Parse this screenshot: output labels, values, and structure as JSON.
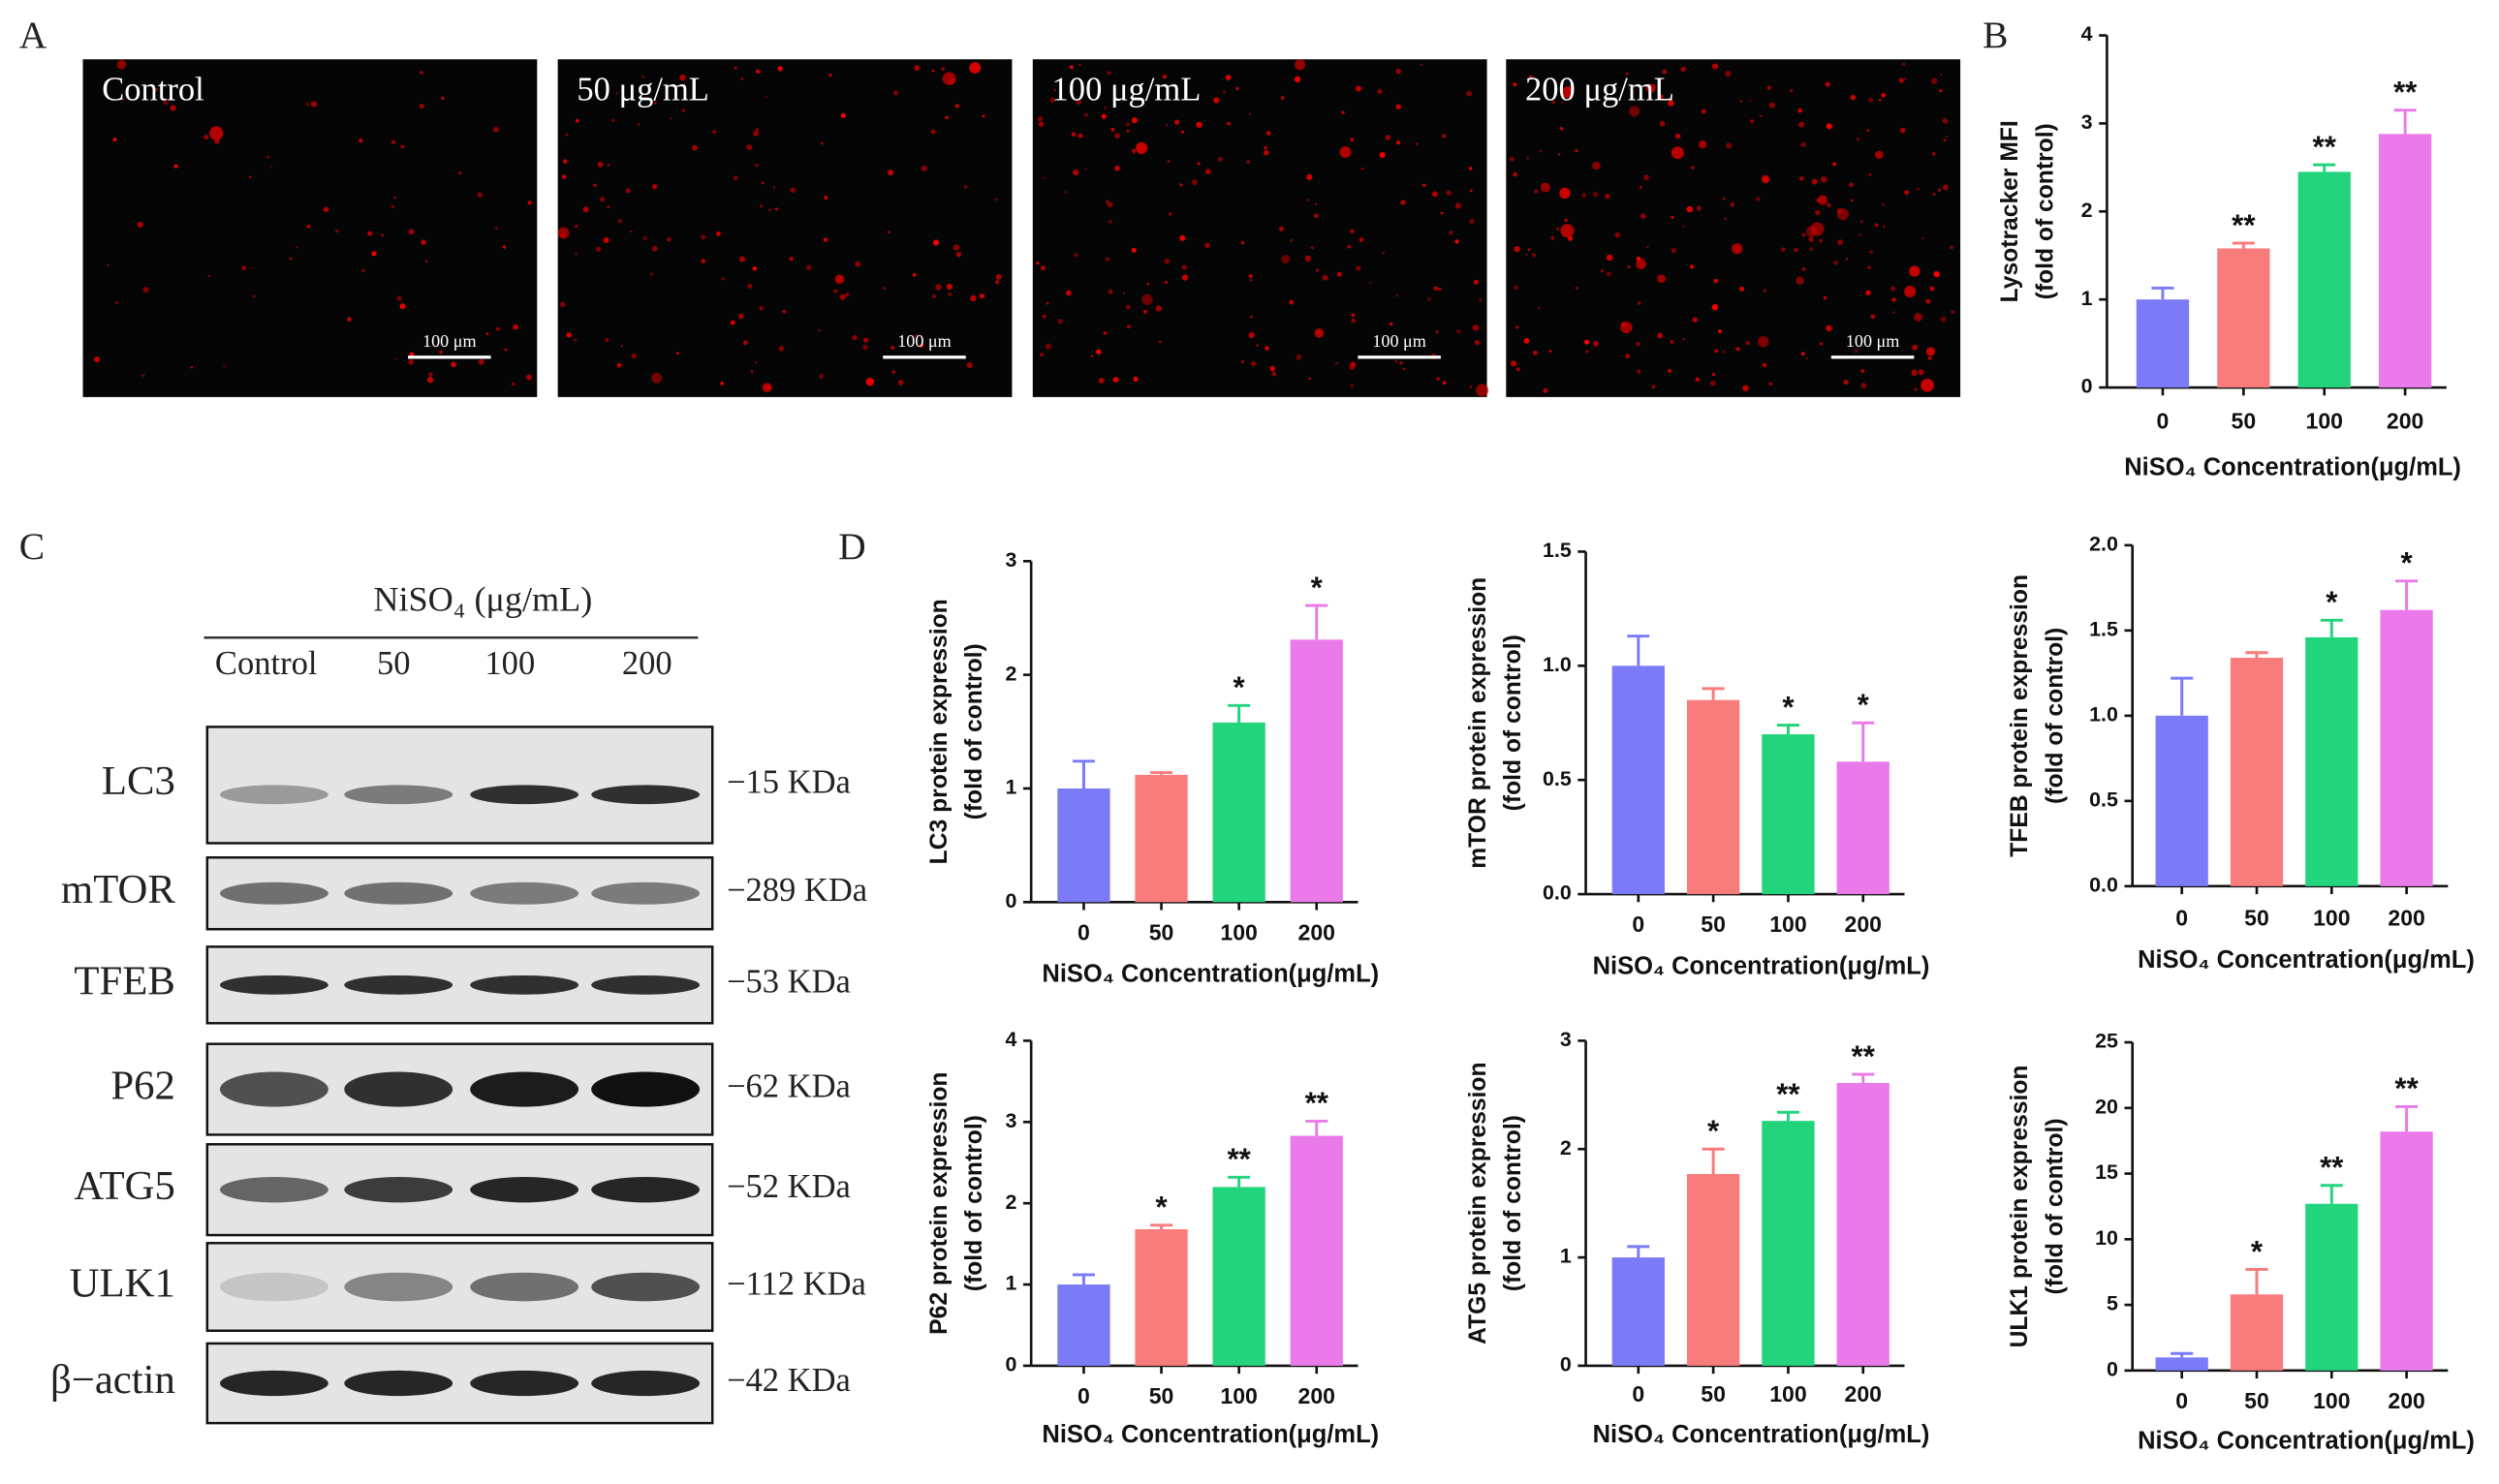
{
  "panel_labels": [
    "A",
    "B",
    "C",
    "D"
  ],
  "microscopy": {
    "labels": [
      "Control",
      "50 μg/mL",
      "100 μg/mL",
      "200 μg/mL"
    ],
    "scale_bar": "100 μm"
  },
  "western_blot": {
    "treatment": "NiSO₄ (μg/mL)",
    "lanes": [
      "Control",
      "50",
      "100",
      "200"
    ],
    "proteins": [
      {
        "name": "LC3",
        "size": "−15 KDa"
      },
      {
        "name": "mTOR",
        "size": "−289 KDa"
      },
      {
        "name": "TFEB",
        "size": "−53 KDa"
      },
      {
        "name": "P62",
        "size": "−62 KDa"
      },
      {
        "name": "ATG5",
        "size": "−52 KDa"
      },
      {
        "name": "ULK1",
        "size": "−112 KDa"
      },
      {
        "name": "β−actin",
        "size": "−42 KDa"
      }
    ]
  },
  "chart_data": [
    {
      "type": "bar",
      "ylabel": [
        "Lysotracker MFI",
        "(fold of control)"
      ],
      "xlabel": "NiSO₄ Concentration(μg/mL)",
      "categories": [
        "0",
        "50",
        "100",
        "200"
      ],
      "colors": [
        "#7b7bf7",
        "#f87c7c",
        "#22d47c",
        "#ea7aea"
      ],
      "values": [
        1.0,
        1.58,
        2.45,
        2.88
      ],
      "errors": [
        0.13,
        0.06,
        0.08,
        0.27
      ],
      "significance": [
        null,
        "**",
        "**",
        "**"
      ],
      "ylim": [
        0,
        4
      ],
      "yticks": [
        0,
        1,
        2,
        3,
        4
      ]
    },
    {
      "type": "bar",
      "ylabel": [
        "LC3 protein expression",
        "(fold of control)"
      ],
      "xlabel": "NiSO₄ Concentration(μg/mL)",
      "categories": [
        "0",
        "50",
        "100",
        "200"
      ],
      "colors": [
        "#7b7bf7",
        "#f87c7c",
        "#22d47c",
        "#ea7aea"
      ],
      "values": [
        1.0,
        1.12,
        1.58,
        2.31
      ],
      "errors": [
        0.24,
        0.02,
        0.15,
        0.3
      ],
      "significance": [
        null,
        null,
        "*",
        "*"
      ],
      "ylim": [
        0,
        3
      ],
      "yticks": [
        0,
        1,
        2,
        3
      ]
    },
    {
      "type": "bar",
      "ylabel": [
        "mTOR protein expression",
        "(fold of control)"
      ],
      "xlabel": "NiSO₄ Concentration(μg/mL)",
      "categories": [
        "0",
        "50",
        "100",
        "200"
      ],
      "colors": [
        "#7b7bf7",
        "#f87c7c",
        "#22d47c",
        "#ea7aea"
      ],
      "values": [
        1.0,
        0.85,
        0.7,
        0.58
      ],
      "errors": [
        0.13,
        0.05,
        0.04,
        0.17
      ],
      "significance": [
        null,
        null,
        "*",
        "*"
      ],
      "ylim": [
        0,
        1.5
      ],
      "yticks": [
        {
          "value": 0,
          "label": "0.0"
        },
        {
          "value": 0.5,
          "label": "0.5"
        },
        {
          "value": 1,
          "label": "1.0"
        },
        {
          "value": 1.5,
          "label": "1.5"
        }
      ]
    },
    {
      "type": "bar",
      "ylabel": [
        "TFEB protein expression",
        "(fold of control)"
      ],
      "xlabel": "NiSO₄ Concentration(μg/mL)",
      "categories": [
        "0",
        "50",
        "100",
        "200"
      ],
      "colors": [
        "#7b7bf7",
        "#f87c7c",
        "#22d47c",
        "#ea7aea"
      ],
      "values": [
        1.0,
        1.34,
        1.46,
        1.62
      ],
      "errors": [
        0.22,
        0.03,
        0.1,
        0.17
      ],
      "significance": [
        null,
        null,
        "*",
        "*"
      ],
      "ylim": [
        0,
        2
      ],
      "yticks": [
        {
          "value": 0,
          "label": "0.0"
        },
        {
          "value": 0.5,
          "label": "0.5"
        },
        {
          "value": 1,
          "label": "1.0"
        },
        {
          "value": 1.5,
          "label": "1.5"
        },
        {
          "value": 2,
          "label": "2.0"
        }
      ]
    },
    {
      "type": "bar",
      "ylabel": [
        "P62 protein expression",
        "(fold of control)"
      ],
      "xlabel": "NiSO₄ Concentration(μg/mL)",
      "categories": [
        "0",
        "50",
        "100",
        "200"
      ],
      "colors": [
        "#7b7bf7",
        "#f87c7c",
        "#22d47c",
        "#ea7aea"
      ],
      "values": [
        1.0,
        1.68,
        2.2,
        2.83
      ],
      "errors": [
        0.12,
        0.05,
        0.12,
        0.18
      ],
      "significance": [
        null,
        "*",
        "**",
        "**"
      ],
      "ylim": [
        0,
        4
      ],
      "yticks": [
        0,
        1,
        2,
        3,
        4
      ]
    },
    {
      "type": "bar",
      "ylabel": [
        "ATG5 protein expression",
        "(fold of control)"
      ],
      "xlabel": "NiSO₄ Concentration(μg/mL)",
      "categories": [
        "0",
        "50",
        "100",
        "200"
      ],
      "colors": [
        "#7b7bf7",
        "#f87c7c",
        "#22d47c",
        "#ea7aea"
      ],
      "values": [
        1.0,
        1.77,
        2.26,
        2.61
      ],
      "errors": [
        0.1,
        0.23,
        0.08,
        0.08
      ],
      "significance": [
        null,
        "*",
        "**",
        "**"
      ],
      "ylim": [
        0,
        3
      ],
      "yticks": [
        0,
        1,
        2,
        3
      ]
    },
    {
      "type": "bar",
      "ylabel": [
        "ULK1 protein expression",
        "(fold of control)"
      ],
      "xlabel": "NiSO₄ Concentration(μg/mL)",
      "categories": [
        "0",
        "50",
        "100",
        "200"
      ],
      "colors": [
        "#7b7bf7",
        "#f87c7c",
        "#22d47c",
        "#ea7aea"
      ],
      "values": [
        1.0,
        5.8,
        12.7,
        18.2
      ],
      "errors": [
        0.3,
        1.9,
        1.4,
        1.9
      ],
      "significance": [
        null,
        "*",
        "**",
        "**"
      ],
      "ylim": [
        0,
        25
      ],
      "yticks": [
        0,
        5,
        10,
        15,
        20,
        25
      ]
    }
  ]
}
